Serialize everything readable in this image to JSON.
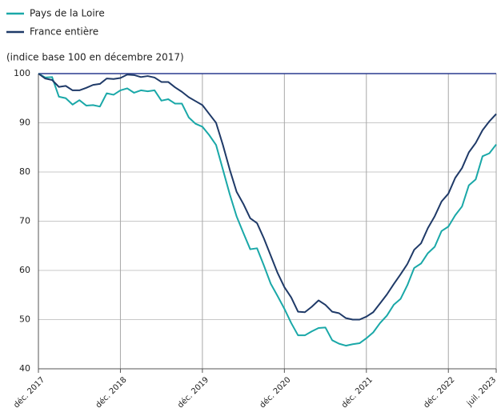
{
  "chart_data": {
    "type": "line",
    "subtitle": "(indice base 100 en décembre 2017)",
    "categories": [
      "déc. 2017",
      null,
      null,
      null,
      null,
      null,
      null,
      null,
      null,
      null,
      null,
      null,
      "déc. 2018",
      null,
      null,
      null,
      null,
      null,
      null,
      null,
      null,
      null,
      null,
      null,
      "déc. 2019",
      null,
      null,
      null,
      null,
      null,
      null,
      null,
      null,
      null,
      null,
      null,
      "déc. 2020",
      null,
      null,
      null,
      null,
      null,
      null,
      null,
      null,
      null,
      null,
      null,
      "déc. 2021",
      null,
      null,
      null,
      null,
      null,
      null,
      null,
      null,
      null,
      null,
      null,
      "déc. 2022",
      null,
      null,
      null,
      null,
      null,
      null,
      "juil. 2023"
    ],
    "series": [
      {
        "name": "Pays de la Loire",
        "color": "#1aa8a8",
        "values": [
          100,
          99.2,
          99.3,
          95.3,
          95,
          93.7,
          94.6,
          93.5,
          93.6,
          93.3,
          96,
          95.7,
          96.6,
          97,
          96.1,
          96.6,
          96.4,
          96.6,
          94.5,
          94.8,
          93.9,
          93.9,
          91.1,
          89.8,
          89.2,
          87.5,
          85.5,
          80.5,
          75.5,
          71,
          67.6,
          64.3,
          64.5,
          61,
          57.3,
          54.8,
          52.2,
          49.3,
          46.8,
          46.8,
          47.6,
          48.3,
          48.4,
          45.8,
          45.1,
          44.7,
          45,
          45.2,
          46.2,
          47.4,
          49.3,
          50.8,
          53,
          54.2,
          57,
          60.5,
          61.4,
          63.5,
          64.8,
          68,
          68.9,
          71.2,
          73,
          77.3,
          78.5,
          83.2,
          83.8,
          85.6
        ]
      },
      {
        "name": "France entière",
        "color": "#1f3a68",
        "values": [
          100,
          99,
          98.7,
          97.3,
          97.5,
          96.6,
          96.6,
          97.1,
          97.7,
          97.9,
          99,
          98.9,
          99.1,
          99.8,
          99.7,
          99.3,
          99.5,
          99.2,
          98.3,
          98.3,
          97.2,
          96.3,
          95.2,
          94.4,
          93.6,
          91.8,
          90,
          85.5,
          80.5,
          76,
          73.5,
          70.6,
          69.6,
          66.5,
          63,
          59.5,
          56.6,
          54.5,
          51.6,
          51.5,
          52.6,
          53.9,
          53,
          51.6,
          51.3,
          50.3,
          50,
          50,
          50.6,
          51.5,
          53.3,
          55.1,
          57.2,
          59.2,
          61.3,
          64.2,
          65.5,
          68.6,
          71,
          74,
          75.6,
          78.8,
          80.8,
          84,
          85.9,
          88.5,
          90.3,
          91.8
        ]
      }
    ],
    "reference_line": {
      "value": 100,
      "color": "#2a3b8f"
    },
    "ylim": [
      40,
      100
    ],
    "yticks": [
      40,
      50,
      60,
      70,
      80,
      90,
      100
    ],
    "grid": true
  }
}
